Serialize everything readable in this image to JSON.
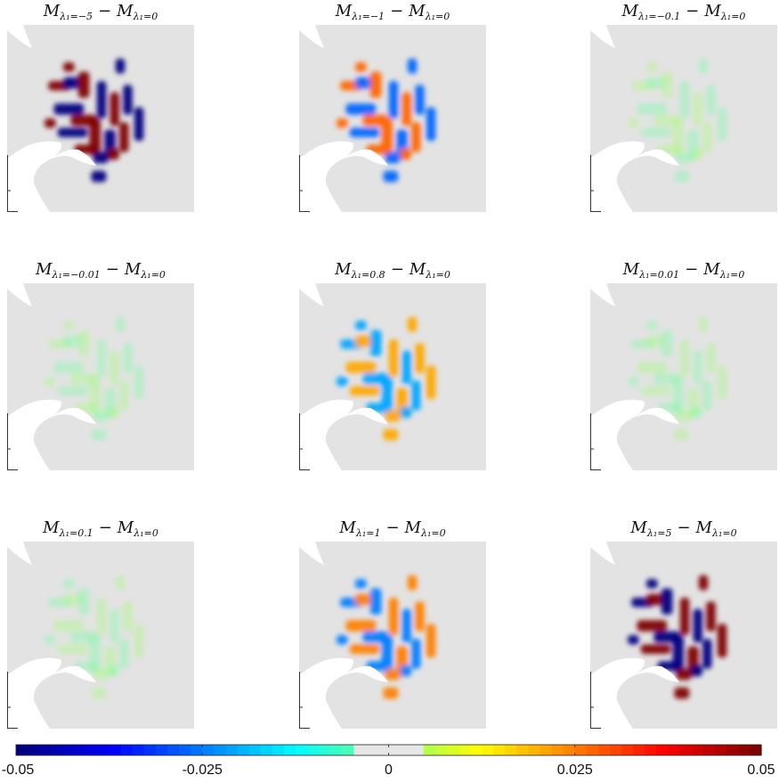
{
  "chart_data": {
    "type": "heatmap",
    "description_colormap": "jet",
    "panels": [
      {
        "lambda": "-5",
        "sup": "λ₁=−5",
        "label": "M_{λ1=−5} − M_{λ1=0}",
        "intensity": 1.0,
        "sign": -1
      },
      {
        "lambda": "-1",
        "sup": "λ₁=−1",
        "label": "M_{λ1=−1} − M_{λ1=0}",
        "intensity": 0.55,
        "sign": -1
      },
      {
        "lambda": "-0.1",
        "sup": "λ₁=−0.1",
        "label": "M_{λ1=−0.1} − M_{λ1=0}",
        "intensity": 0.06,
        "sign": -1
      },
      {
        "lambda": "-0.01",
        "sup": "λ₁=−0.01",
        "label": "M_{λ1=−0.01} − M_{λ1=0}",
        "intensity": 0.04,
        "sign": -1
      },
      {
        "lambda": "0.8",
        "sup": "λ₁=0.8",
        "label": "M_{λ1=0.8} − M_{λ1=0}",
        "intensity": 0.42,
        "sign": 1
      },
      {
        "lambda": "0.01",
        "sup": "λ₁=0.01",
        "label": "M_{λ1=0.01} − M_{λ1=0}",
        "intensity": 0.04,
        "sign": 1
      },
      {
        "lambda": "0.1",
        "sup": "λ₁=0.1",
        "label": "M_{λ1=0.1} − M_{λ1=0}",
        "intensity": 0.05,
        "sign": 1
      },
      {
        "lambda": "1",
        "sup": "λ₁=1",
        "label": "M_{λ1=1} − M_{λ1=0}",
        "intensity": 0.5,
        "sign": 1
      },
      {
        "lambda": "5",
        "sup": "λ₁=5",
        "label": "M_{λ1=5} − M_{λ1=0}",
        "intensity": 1.0,
        "sign": 1
      }
    ],
    "colorbar": {
      "min": -0.05,
      "max": 0.05,
      "ticks": [
        "-0.05",
        "-0.025",
        "0",
        "0.025",
        "0.05"
      ],
      "tick_values": [
        -0.05,
        -0.025,
        0,
        0.025,
        0.05
      ]
    }
  },
  "titles": {
    "base": "M",
    "minus": "−",
    "ref_sub": "λ₁=0"
  },
  "colors": {
    "background_field": "#e3e3e3",
    "land": "#ffffff"
  }
}
